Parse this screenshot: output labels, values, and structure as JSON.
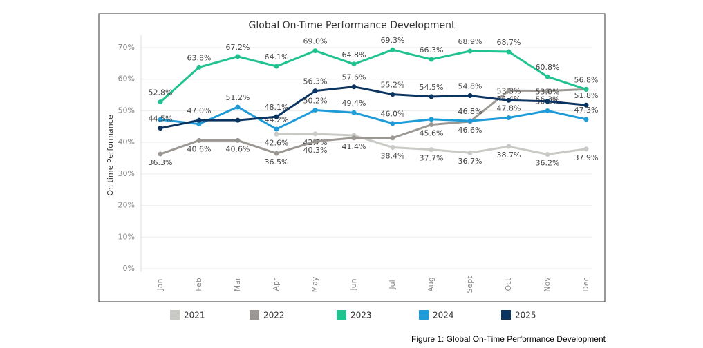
{
  "chart_data": {
    "type": "line",
    "title": "Global On-Time Performance Development",
    "y_label": "On time Performance",
    "caption": "Figure 1: Global On-Time Performance Development",
    "categories": [
      "Jan",
      "Feb",
      "Mar",
      "Apr",
      "May",
      "Jun",
      "Jul",
      "Aug",
      "Sept",
      "Oct",
      "Nov",
      "Dec"
    ],
    "ylim": [
      -1,
      74
    ],
    "yticks": [
      {
        "value": 0,
        "label": "0%"
      },
      {
        "value": 10,
        "label": "10%"
      },
      {
        "value": 20,
        "label": "20%"
      },
      {
        "value": 30,
        "label": "30%"
      },
      {
        "value": 40,
        "label": "40%"
      },
      {
        "value": 50,
        "label": "50%"
      },
      {
        "value": 60,
        "label": "60%"
      },
      {
        "value": 70,
        "label": "70%"
      }
    ],
    "grid": true,
    "series": [
      {
        "name": "2021",
        "color": "#c9c9c5",
        "values": [
          null,
          null,
          null,
          42.6,
          42.7,
          42.2,
          38.4,
          37.7,
          36.7,
          38.7,
          36.2,
          37.9
        ],
        "value_labels": [
          null,
          null,
          null,
          "42.6%",
          "42.7%",
          null,
          "38.4%",
          "37.7%",
          "36.7%",
          "38.7%",
          "36.2%",
          "37.9%"
        ]
      },
      {
        "name": "2022",
        "color": "#9b9893",
        "values": [
          36.3,
          40.6,
          40.6,
          36.5,
          40.3,
          41.4,
          41.4,
          45.6,
          46.6,
          56.4,
          56.3,
          56.8
        ],
        "value_labels": [
          "36.3%",
          "40.6%",
          "40.6%",
          "36.5%",
          "40.3%",
          "41.4%",
          null,
          "45.6%",
          "46.6%",
          "56.4%",
          "56.3%",
          null
        ]
      },
      {
        "name": "2023",
        "color": "#20c390",
        "values": [
          52.8,
          63.8,
          67.2,
          64.1,
          69.0,
          64.8,
          69.3,
          66.3,
          68.9,
          68.7,
          60.8,
          56.8
        ],
        "value_labels": [
          "52.8%",
          "63.8%",
          "67.2%",
          "64.1%",
          "69.0%",
          "64.8%",
          "69.3%",
          "66.3%",
          "68.9%",
          "68.7%",
          "60.8%",
          "56.8%"
        ]
      },
      {
        "name": "2024",
        "color": "#1f9bd7",
        "values": [
          47.2,
          45.8,
          51.2,
          44.2,
          50.2,
          49.4,
          46.0,
          47.3,
          46.8,
          47.8,
          50.0,
          47.3
        ],
        "value_labels": [
          null,
          null,
          "51.2%",
          "44.2%",
          "50.2%",
          "49.4%",
          "46.0%",
          null,
          "46.8%",
          "47.8%",
          "50.0%",
          "47.3%"
        ]
      },
      {
        "name": "2025",
        "color": "#0b3460",
        "values": [
          44.5,
          47.0,
          47.0,
          48.1,
          56.3,
          57.6,
          55.2,
          54.5,
          54.8,
          53.3,
          53.0,
          51.8
        ],
        "value_labels": [
          "44.5%",
          "47.0%",
          null,
          "48.1%",
          "56.3%",
          "57.6%",
          "55.2%",
          "54.5%",
          "54.8%",
          "53.3%",
          "53.0%",
          "51.8%"
        ]
      }
    ]
  }
}
